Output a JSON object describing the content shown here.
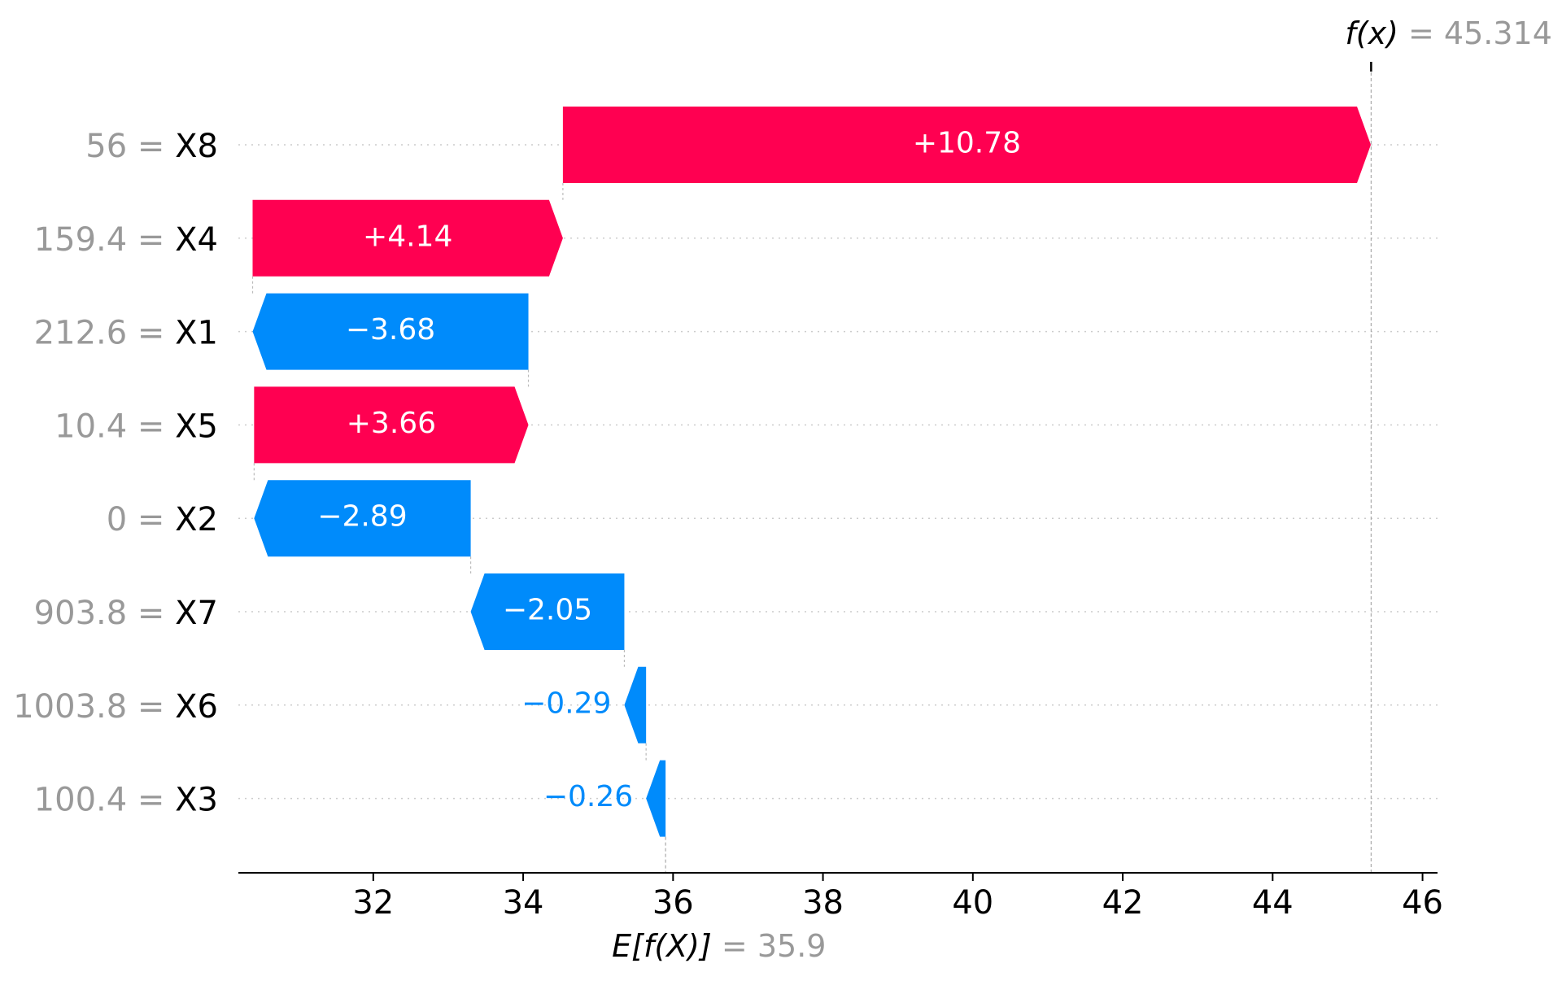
{
  "chart_data": {
    "type": "waterfall",
    "output_label": "f(x)",
    "output_value": "45.314",
    "output_numeric": 45.314,
    "base_label": "E[f(X)]",
    "base_value": "35.9",
    "base_numeric": 35.9,
    "xlim": [
      30.2,
      46.2
    ],
    "x_ticks": [
      32,
      34,
      36,
      38,
      40,
      42,
      44,
      46
    ],
    "colors": {
      "positive": "#ff0051",
      "negative": "#008bfb",
      "value_text": "#999999",
      "gridline": "#cccccc"
    },
    "features": [
      {
        "value": "56",
        "name": "X8",
        "contribution": 10.78,
        "label": "+10.78"
      },
      {
        "value": "159.4",
        "name": "X4",
        "contribution": 4.14,
        "label": "+4.14"
      },
      {
        "value": "212.6",
        "name": "X1",
        "contribution": -3.68,
        "label": "−3.68"
      },
      {
        "value": "10.4",
        "name": "X5",
        "contribution": 3.66,
        "label": "+3.66"
      },
      {
        "value": "0",
        "name": "X2",
        "contribution": -2.89,
        "label": "−2.89"
      },
      {
        "value": "903.8",
        "name": "X7",
        "contribution": -2.05,
        "label": "−2.05"
      },
      {
        "value": "1003.8",
        "name": "X6",
        "contribution": -0.29,
        "label": "−0.29"
      },
      {
        "value": "100.4",
        "name": "X3",
        "contribution": -0.26,
        "label": "−0.26"
      }
    ]
  }
}
